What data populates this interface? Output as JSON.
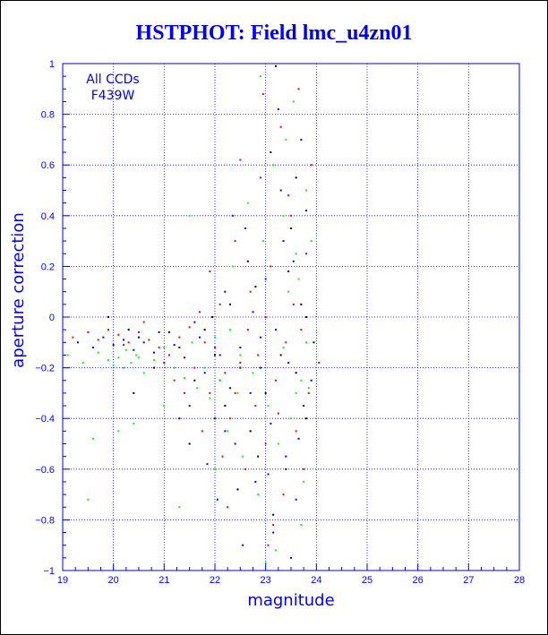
{
  "chart_data": {
    "type": "scatter",
    "title": "HSTPHOT: Field lmc_u4zn01",
    "xlabel": "magnitude",
    "ylabel": "aperture correction",
    "xlim": [
      19,
      28
    ],
    "ylim": [
      -1,
      1
    ],
    "xticks": [
      19,
      20,
      21,
      22,
      23,
      24,
      25,
      26,
      27,
      28
    ],
    "yticks": [
      -1,
      -0.8,
      -0.6,
      -0.4,
      -0.2,
      0,
      0.2,
      0.4,
      0.6,
      0.8,
      1
    ],
    "xtick_labels": [
      "19",
      "20",
      "21",
      "22",
      "23",
      "24",
      "25",
      "26",
      "27",
      "28"
    ],
    "ytick_labels": [
      "−1",
      "−0.8",
      "−0.6",
      "−0.4",
      "−0.2",
      "0",
      "0.2",
      "0.4",
      "0.6",
      "0.8",
      "1"
    ],
    "grid": true,
    "annotations": [
      "All CCDs",
      "F439W"
    ],
    "colors": {
      "axis": "#0000ff",
      "text": "#0000ff"
    },
    "series": [
      {
        "color": "#ff0000",
        "points": [
          [
            19.2,
            -0.08
          ],
          [
            19.5,
            -0.06
          ],
          [
            19.7,
            -0.09
          ],
          [
            19.9,
            -0.05
          ],
          [
            20.1,
            -0.07
          ],
          [
            20.3,
            -0.1
          ],
          [
            20.5,
            -0.06
          ],
          [
            20.7,
            -0.09
          ],
          [
            20.9,
            -0.12
          ],
          [
            21.1,
            -0.15
          ],
          [
            21.3,
            -0.08
          ],
          [
            21.5,
            -0.04
          ],
          [
            21.6,
            -0.2
          ],
          [
            21.7,
            0.02
          ],
          [
            21.8,
            -0.1
          ],
          [
            21.9,
            -0.3
          ],
          [
            22.0,
            -0.12
          ],
          [
            22.1,
            0.05
          ],
          [
            22.2,
            -0.22
          ],
          [
            22.3,
            -0.4
          ],
          [
            22.4,
            0.3
          ],
          [
            22.5,
            -0.18
          ],
          [
            22.6,
            -0.6
          ],
          [
            22.7,
            0.1
          ],
          [
            22.8,
            -0.35
          ],
          [
            22.9,
            0.55
          ],
          [
            23.0,
            -0.5
          ],
          [
            23.05,
            -0.9
          ],
          [
            23.1,
            0.2
          ],
          [
            23.2,
            -0.25
          ],
          [
            23.3,
            0.75
          ],
          [
            23.35,
            -0.7
          ],
          [
            23.4,
            -0.1
          ],
          [
            23.5,
            0.4
          ],
          [
            23.6,
            -0.45
          ],
          [
            23.65,
            0.9
          ],
          [
            23.7,
            -0.05
          ],
          [
            23.75,
            -0.6
          ],
          [
            23.8,
            0.25
          ],
          [
            23.85,
            -0.3
          ],
          [
            24.05,
            -0.18
          ],
          [
            22.15,
            -0.55
          ],
          [
            21.4,
            -0.3
          ],
          [
            22.5,
            0.62
          ],
          [
            23.15,
            -0.82
          ],
          [
            21.9,
            0.18
          ],
          [
            23.55,
            0.05
          ],
          [
            22.85,
            -0.15
          ],
          [
            22.25,
            -0.75
          ],
          [
            23.45,
            0.48
          ],
          [
            20.6,
            -0.02
          ],
          [
            21.2,
            -0.25
          ],
          [
            22.65,
            -0.05
          ],
          [
            23.25,
            -0.38
          ],
          [
            23.9,
            0.6
          ],
          [
            22.95,
            0.88
          ],
          [
            21.75,
            -0.45
          ],
          [
            20.2,
            -0.11
          ],
          [
            23.0,
            0.0
          ],
          [
            22.4,
            -0.3
          ]
        ]
      },
      {
        "color": "#0000ff",
        "points": [
          [
            19.3,
            -0.1
          ],
          [
            19.6,
            -0.12
          ],
          [
            19.8,
            -0.08
          ],
          [
            20.0,
            -0.11
          ],
          [
            20.2,
            -0.09
          ],
          [
            20.4,
            -0.13
          ],
          [
            20.6,
            -0.1
          ],
          [
            20.8,
            -0.14
          ],
          [
            21.0,
            -0.18
          ],
          [
            21.2,
            -0.11
          ],
          [
            21.4,
            -0.16
          ],
          [
            21.5,
            -0.35
          ],
          [
            21.7,
            -0.08
          ],
          [
            21.8,
            -0.22
          ],
          [
            22.0,
            -0.4
          ],
          [
            22.1,
            -0.15
          ],
          [
            22.2,
            0.1
          ],
          [
            22.3,
            -0.28
          ],
          [
            22.4,
            -0.5
          ],
          [
            22.5,
            -0.12
          ],
          [
            22.6,
            0.35
          ],
          [
            22.7,
            -0.3
          ],
          [
            22.8,
            -0.65
          ],
          [
            22.9,
            -0.2
          ],
          [
            23.0,
            0.15
          ],
          [
            23.1,
            -0.42
          ],
          [
            23.15,
            -0.85
          ],
          [
            23.2,
            -0.05
          ],
          [
            23.3,
            0.5
          ],
          [
            23.4,
            -0.55
          ],
          [
            23.45,
            -0.18
          ],
          [
            23.55,
            0.22
          ],
          [
            23.6,
            -0.72
          ],
          [
            23.7,
            0.7
          ],
          [
            23.75,
            -0.35
          ],
          [
            23.8,
            0.0
          ],
          [
            23.9,
            -0.25
          ],
          [
            22.55,
            -0.9
          ],
          [
            21.85,
            -0.58
          ],
          [
            23.25,
            0.82
          ],
          [
            22.35,
            0.4
          ],
          [
            23.05,
            -0.62
          ],
          [
            21.6,
            -0.02
          ],
          [
            20.9,
            -0.06
          ],
          [
            22.75,
            0.02
          ],
          [
            23.65,
            -0.48
          ],
          [
            22.05,
            -0.72
          ],
          [
            23.35,
            0.3
          ],
          [
            21.3,
            -0.4
          ],
          [
            23.5,
            -0.95
          ],
          [
            22.9,
            -0.08
          ],
          [
            22.2,
            -0.45
          ],
          [
            23.8,
            0.42
          ]
        ]
      },
      {
        "color": "#000000",
        "points": [
          [
            19.9,
            0.0
          ],
          [
            20.3,
            -0.05
          ],
          [
            20.5,
            -0.08
          ],
          [
            20.8,
            -0.2
          ],
          [
            21.1,
            -0.06
          ],
          [
            21.3,
            -0.12
          ],
          [
            21.6,
            -0.25
          ],
          [
            21.8,
            -0.05
          ],
          [
            22.0,
            -0.15
          ],
          [
            22.2,
            -0.35
          ],
          [
            22.3,
            0.05
          ],
          [
            22.5,
            -0.2
          ],
          [
            22.7,
            -0.45
          ],
          [
            22.8,
            0.12
          ],
          [
            23.0,
            -0.3
          ],
          [
            23.1,
            0.65
          ],
          [
            23.2,
            0.99
          ],
          [
            23.3,
            -0.15
          ],
          [
            23.4,
            -0.6
          ],
          [
            23.5,
            0.35
          ],
          [
            23.6,
            -0.22
          ],
          [
            23.7,
            0.05
          ],
          [
            23.8,
            -0.4
          ],
          [
            22.45,
            -0.68
          ],
          [
            21.95,
            0.0
          ],
          [
            23.15,
            -0.78
          ],
          [
            22.65,
            0.22
          ],
          [
            23.45,
            0.18
          ],
          [
            20.4,
            -0.3
          ],
          [
            21.5,
            -0.5
          ],
          [
            22.85,
            -0.55
          ],
          [
            23.6,
            0.55
          ],
          [
            23.95,
            -0.1
          ],
          [
            22.1,
            -0.25
          ]
        ]
      },
      {
        "color": "#00ff00",
        "points": [
          [
            19.1,
            -0.15
          ],
          [
            19.4,
            -0.18
          ],
          [
            19.7,
            -0.14
          ],
          [
            19.9,
            -0.17
          ],
          [
            20.1,
            -0.16
          ],
          [
            20.2,
            -0.2
          ],
          [
            20.25,
            -0.13
          ],
          [
            20.35,
            -0.18
          ],
          [
            20.45,
            -0.15
          ],
          [
            20.6,
            -0.22
          ],
          [
            20.8,
            -0.17
          ],
          [
            21.0,
            -0.12
          ],
          [
            21.2,
            -0.2
          ],
          [
            21.4,
            -0.24
          ],
          [
            21.55,
            -0.1
          ],
          [
            21.65,
            -0.28
          ],
          [
            21.8,
            -0.2
          ],
          [
            21.9,
            -0.32
          ],
          [
            22.0,
            -0.08
          ],
          [
            22.1,
            -0.25
          ],
          [
            22.25,
            -0.45
          ],
          [
            22.35,
            0.2
          ],
          [
            22.45,
            -0.3
          ],
          [
            22.55,
            -0.55
          ],
          [
            22.65,
            0.45
          ],
          [
            22.75,
            -0.22
          ],
          [
            22.85,
            -0.7
          ],
          [
            22.95,
            0.3
          ],
          [
            23.05,
            -0.35
          ],
          [
            23.15,
            0.6
          ],
          [
            23.25,
            -0.5
          ],
          [
            23.35,
            -0.12
          ],
          [
            23.45,
            0.1
          ],
          [
            23.5,
            -0.4
          ],
          [
            23.55,
            0.85
          ],
          [
            23.6,
            -0.3
          ],
          [
            23.65,
            0.15
          ],
          [
            23.7,
            -0.25
          ],
          [
            23.75,
            -0.65
          ],
          [
            23.8,
            0.5
          ],
          [
            23.85,
            -0.28
          ],
          [
            23.9,
            0.3
          ],
          [
            19.5,
            -0.72
          ],
          [
            19.6,
            -0.48
          ],
          [
            20.1,
            -0.45
          ],
          [
            20.4,
            -0.42
          ],
          [
            21.3,
            -0.75
          ],
          [
            21.5,
            0.4
          ],
          [
            22.0,
            -0.6
          ],
          [
            23.0,
            -0.97
          ],
          [
            23.2,
            -0.92
          ],
          [
            22.9,
            0.95
          ],
          [
            23.4,
            0.7
          ],
          [
            23.7,
            -0.82
          ],
          [
            21.0,
            -0.35
          ],
          [
            22.5,
            -0.15
          ],
          [
            23.6,
            0.25
          ],
          [
            22.3,
            -0.05
          ],
          [
            23.8,
            -0.1
          ],
          [
            20.0,
            -0.19
          ],
          [
            20.5,
            -0.16
          ],
          [
            23.35,
            0.4
          ]
        ]
      }
    ]
  }
}
